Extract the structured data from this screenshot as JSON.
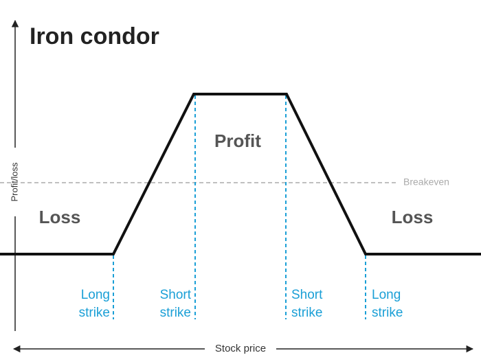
{
  "title": "Iron condor",
  "axes": {
    "y_label": "Profit/loss",
    "x_label": "Stock price"
  },
  "breakeven": "Breakeven",
  "regions": {
    "left": "Loss",
    "middle": "Profit",
    "right": "Loss"
  },
  "strikes": [
    {
      "lines": [
        "Long",
        "strike"
      ]
    },
    {
      "lines": [
        "Short",
        "strike"
      ]
    },
    {
      "lines": [
        "Short",
        "strike"
      ]
    },
    {
      "lines": [
        "Long",
        "strike"
      ]
    }
  ]
}
